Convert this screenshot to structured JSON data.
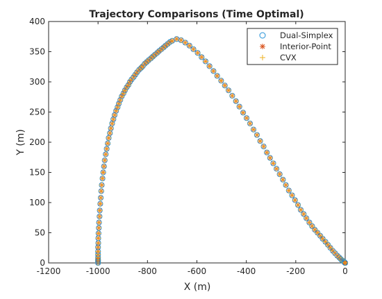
{
  "chart_data": {
    "type": "scatter",
    "title": "Trajectory Comparisons (Time Optimal)",
    "xlabel": "X (m)",
    "ylabel": "Y (m)",
    "xlim": [
      -1200,
      0
    ],
    "ylim": [
      0,
      400
    ],
    "xticks": [
      -1200,
      -1000,
      -800,
      -600,
      -400,
      -200,
      0
    ],
    "yticks": [
      0,
      50,
      100,
      150,
      200,
      250,
      300,
      350,
      400
    ],
    "grid": false,
    "legend_position": "top-right",
    "colors": {
      "dual_simplex": "#1f8fd6",
      "interior_point": "#d9531e",
      "cvx": "#eeb021"
    },
    "series": [
      {
        "name": "Dual-Simplex",
        "marker": "circle"
      },
      {
        "name": "Interior-Point",
        "marker": "asterisk"
      },
      {
        "name": "CVX",
        "marker": "plus"
      }
    ],
    "x": [
      -1000,
      -1000,
      -1000,
      -1000,
      -1000,
      -1000,
      -1000,
      -1000,
      -999,
      -999,
      -998,
      -997,
      -996,
      -994,
      -993,
      -991,
      -989,
      -987,
      -985,
      -982,
      -979,
      -976,
      -973,
      -969,
      -965,
      -961,
      -957,
      -952,
      -948,
      -943,
      -938,
      -933,
      -927,
      -921,
      -916,
      -910,
      -904,
      -897,
      -891,
      -884,
      -877,
      -871,
      -864,
      -856,
      -849,
      -842,
      -834,
      -826,
      -819,
      -811,
      -803,
      -795,
      -786,
      -778,
      -770,
      -761,
      -753,
      -744,
      -735,
      -727,
      -718,
      -709,
      -700,
      -682,
      -664,
      -647,
      -630,
      -614,
      -597,
      -581,
      -565,
      -549,
      -533,
      -518,
      -502,
      -487,
      -472,
      -457,
      -442,
      -428,
      -413,
      -399,
      -385,
      -371,
      -357,
      -344,
      -330,
      -317,
      -304,
      -291,
      -278,
      -265,
      -252,
      -240,
      -228,
      -215,
      -203,
      -191,
      -180,
      -168,
      -157,
      -145,
      -134,
      -123,
      -112,
      -101,
      -91,
      -80,
      -70,
      -60,
      -50,
      -41,
      -32,
      -24,
      -17,
      -12,
      -8,
      -5,
      -3,
      -2,
      -1,
      0,
      0
    ],
    "y": [
      0,
      2,
      4,
      6,
      9,
      14,
      19,
      26,
      33,
      41,
      49,
      58,
      67,
      77,
      87,
      98,
      108,
      119,
      129,
      140,
      150,
      160,
      170,
      180,
      189,
      198,
      207,
      215,
      223,
      231,
      238,
      245,
      252,
      258,
      264,
      270,
      276,
      281,
      286,
      291,
      295,
      300,
      304,
      308,
      312,
      316,
      320,
      323,
      326,
      330,
      333,
      336,
      339,
      342,
      345,
      348,
      351,
      354,
      357,
      360,
      363,
      366,
      368,
      371,
      369,
      365,
      360,
      354,
      348,
      341,
      334,
      326,
      318,
      310,
      302,
      294,
      286,
      277,
      268,
      259,
      249,
      240,
      231,
      221,
      212,
      202,
      193,
      183,
      174,
      165,
      156,
      147,
      138,
      129,
      120,
      112,
      104,
      96,
      88,
      81,
      74,
      67,
      61,
      55,
      50,
      45,
      40,
      35,
      30,
      25,
      20,
      16,
      12,
      9,
      6,
      4,
      3,
      2,
      1,
      1,
      0,
      0,
      0
    ]
  }
}
